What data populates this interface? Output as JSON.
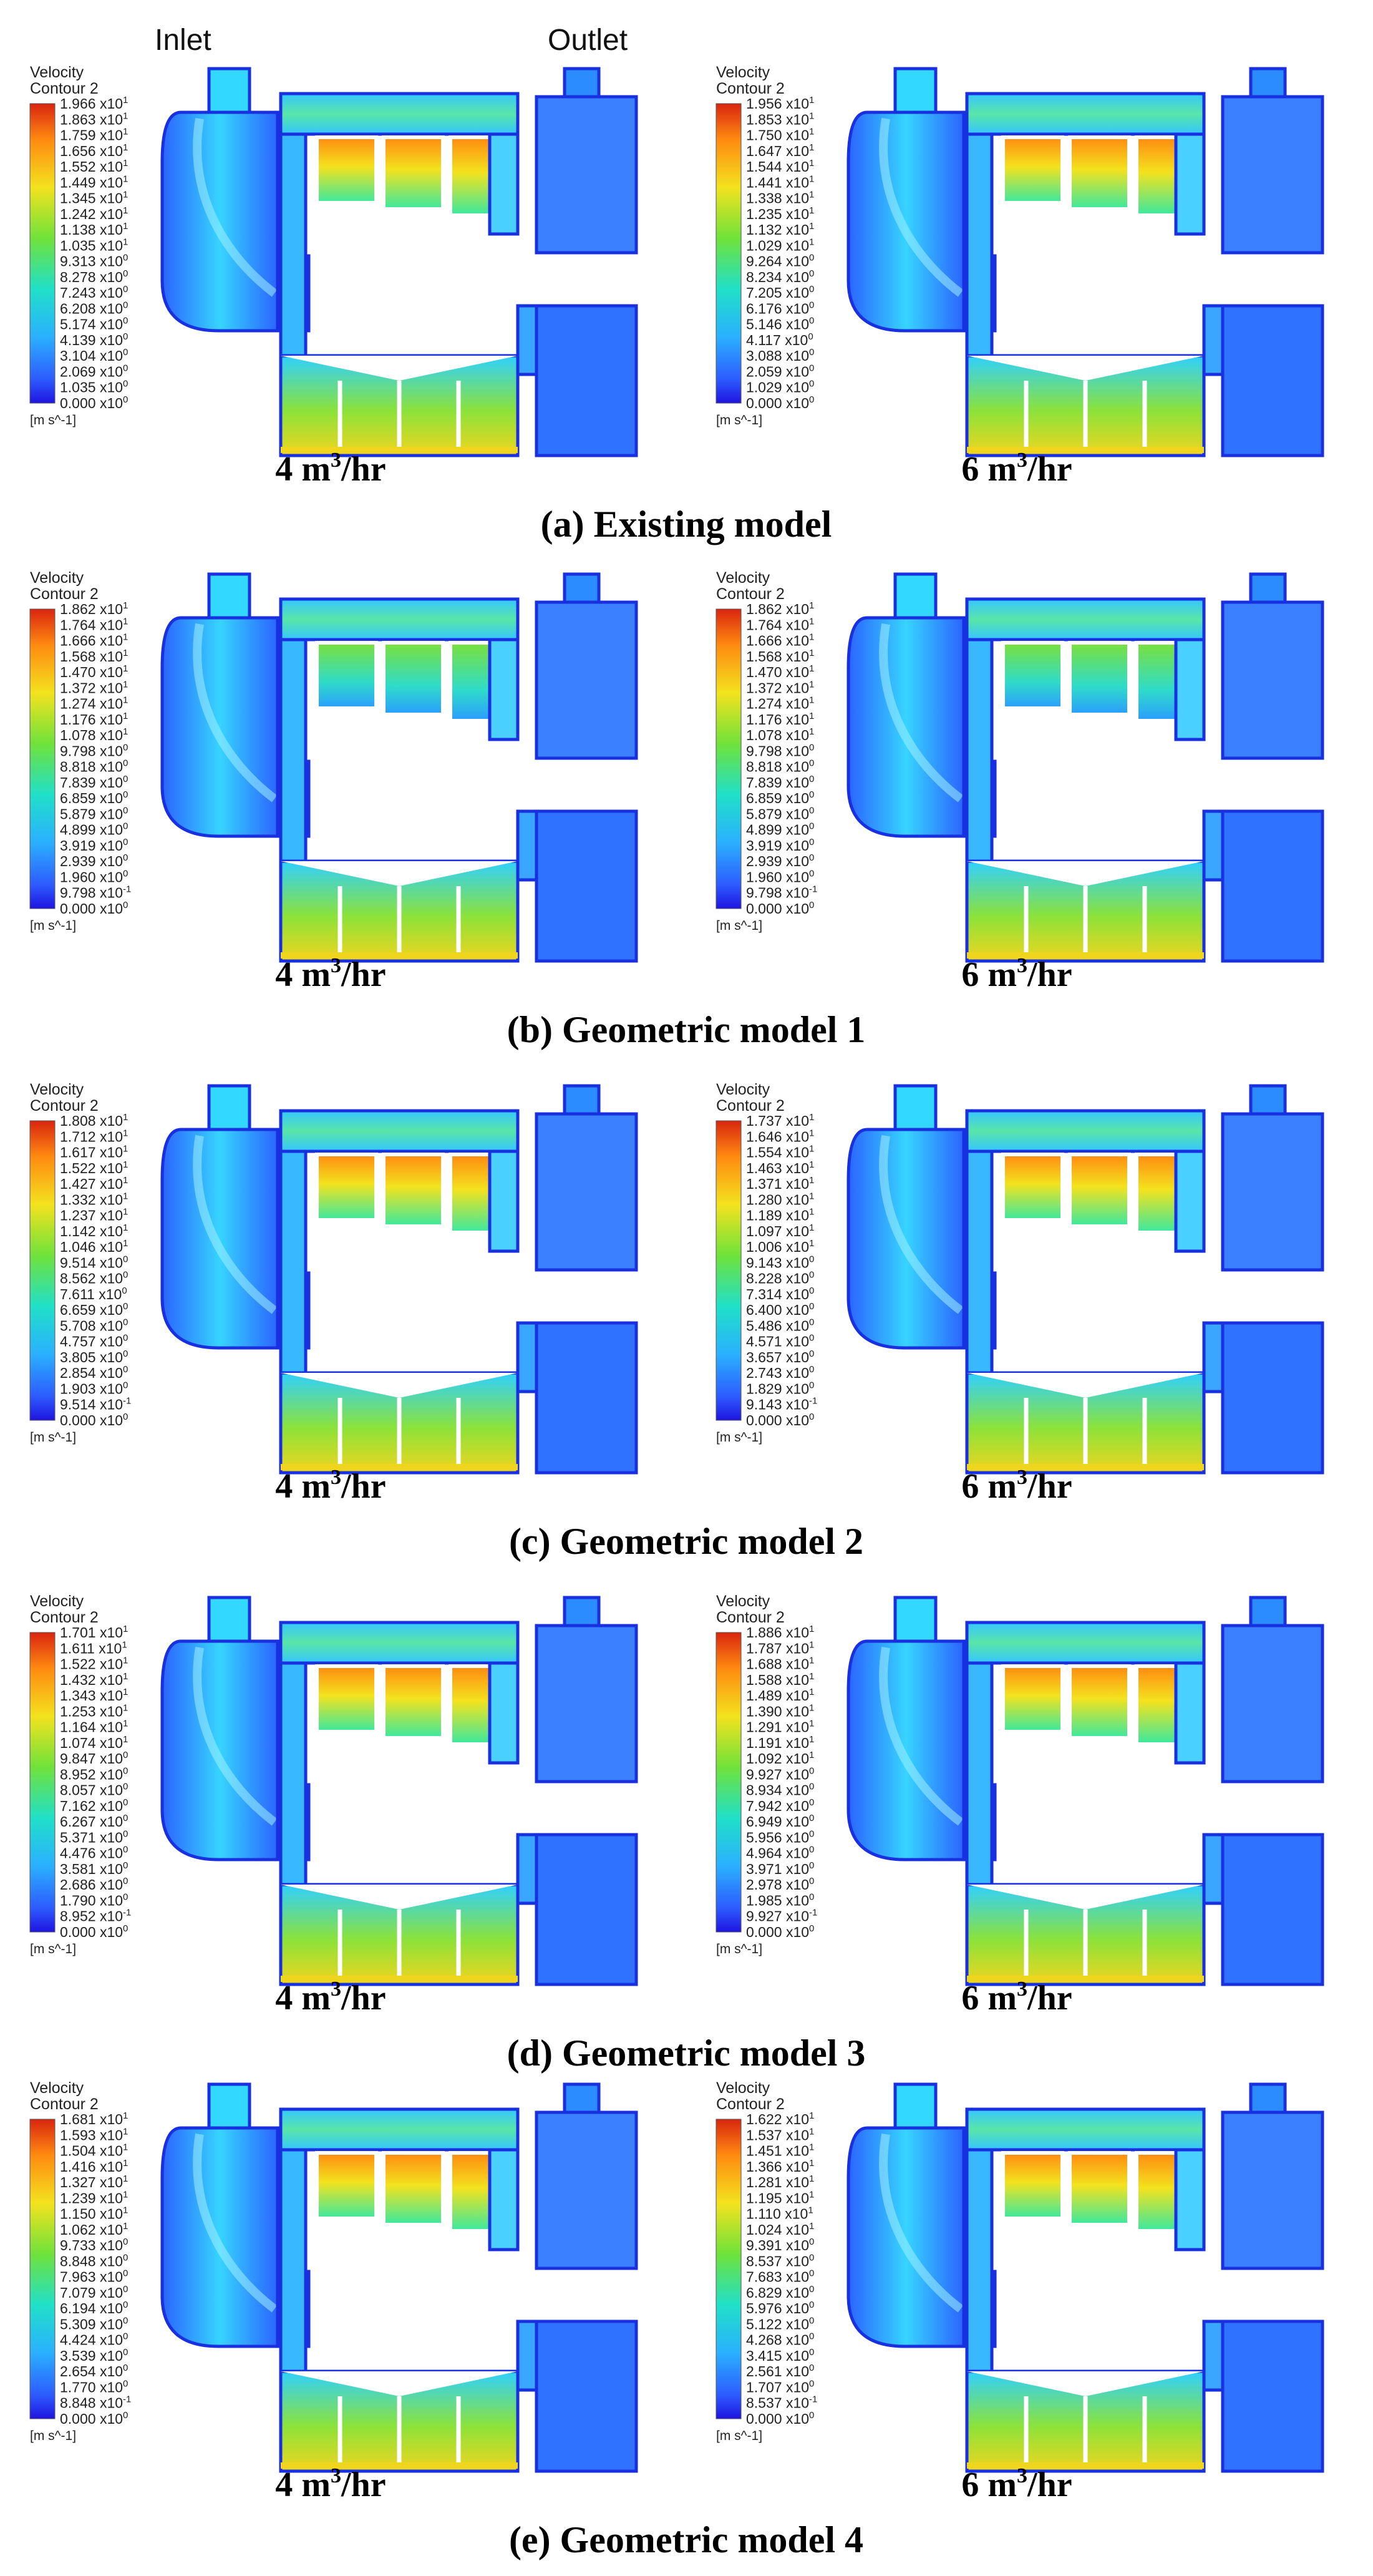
{
  "figure": {
    "io_labels": {
      "inlet": "Inlet",
      "outlet": "Outlet"
    },
    "colors": {
      "outline": "#1830e0",
      "fluid": "#3d8bff",
      "inlet_core": "#32d8ff",
      "high_velocity": "#ff7a10",
      "mid_velocity": "#7ce03a",
      "gap": "#ffffff"
    },
    "rows": [
      {
        "caption": "(a) Existing model",
        "panels": [
          {
            "legend_title": "Velocity",
            "legend_subtitle": "Contour 2",
            "unit": "[m s^-1]",
            "flow_value": "4",
            "flow_unit": "m",
            "flow_sup": "3",
            "flow_tail": "/hr",
            "ticks": [
              [
                "1.966",
                "1"
              ],
              [
                "1.863",
                "1"
              ],
              [
                "1.759",
                "1"
              ],
              [
                "1.656",
                "1"
              ],
              [
                "1.552",
                "1"
              ],
              [
                "1.449",
                "1"
              ],
              [
                "1.345",
                "1"
              ],
              [
                "1.242",
                "1"
              ],
              [
                "1.138",
                "1"
              ],
              [
                "1.035",
                "1"
              ],
              [
                "9.313",
                "0"
              ],
              [
                "8.278",
                "0"
              ],
              [
                "7.243",
                "0"
              ],
              [
                "6.208",
                "0"
              ],
              [
                "5.174",
                "0"
              ],
              [
                "4.139",
                "0"
              ],
              [
                "3.104",
                "0"
              ],
              [
                "2.069",
                "0"
              ],
              [
                "1.035",
                "0"
              ],
              [
                "0.000",
                "0"
              ]
            ],
            "peak": 0.95
          },
          {
            "legend_title": "Velocity",
            "legend_subtitle": "Contour 2",
            "unit": "[m s^-1]",
            "flow_value": "6",
            "flow_unit": "m",
            "flow_sup": "3",
            "flow_tail": "/hr",
            "ticks": [
              [
                "1.956",
                "1"
              ],
              [
                "1.853",
                "1"
              ],
              [
                "1.750",
                "1"
              ],
              [
                "1.647",
                "1"
              ],
              [
                "1.544",
                "1"
              ],
              [
                "1.441",
                "1"
              ],
              [
                "1.338",
                "1"
              ],
              [
                "1.235",
                "1"
              ],
              [
                "1.132",
                "1"
              ],
              [
                "1.029",
                "1"
              ],
              [
                "9.264",
                "0"
              ],
              [
                "8.234",
                "0"
              ],
              [
                "7.205",
                "0"
              ],
              [
                "6.176",
                "0"
              ],
              [
                "5.146",
                "0"
              ],
              [
                "4.117",
                "0"
              ],
              [
                "3.088",
                "0"
              ],
              [
                "2.059",
                "0"
              ],
              [
                "1.029",
                "0"
              ],
              [
                "0.000",
                "0"
              ]
            ],
            "peak": 1.0
          }
        ]
      },
      {
        "caption": "(b) Geometric model 1",
        "panels": [
          {
            "legend_title": "Velocity",
            "legend_subtitle": "Contour 2",
            "unit": "[m s^-1]",
            "flow_value": "4",
            "flow_unit": "m",
            "flow_sup": "3",
            "flow_tail": "/hr",
            "ticks": [
              [
                "1.862",
                "1"
              ],
              [
                "1.764",
                "1"
              ],
              [
                "1.666",
                "1"
              ],
              [
                "1.568",
                "1"
              ],
              [
                "1.470",
                "1"
              ],
              [
                "1.372",
                "1"
              ],
              [
                "1.274",
                "1"
              ],
              [
                "1.176",
                "1"
              ],
              [
                "1.078",
                "1"
              ],
              [
                "9.798",
                "0"
              ],
              [
                "8.818",
                "0"
              ],
              [
                "7.839",
                "0"
              ],
              [
                "6.859",
                "0"
              ],
              [
                "5.879",
                "0"
              ],
              [
                "4.899",
                "0"
              ],
              [
                "3.919",
                "0"
              ],
              [
                "2.939",
                "0"
              ],
              [
                "1.960",
                "0"
              ],
              [
                "9.798",
                "-1"
              ],
              [
                "0.000",
                "0"
              ]
            ],
            "peak": 0.55
          },
          {
            "legend_title": "Velocity",
            "legend_subtitle": "Contour 2",
            "unit": "[m s^-1]",
            "flow_value": "6",
            "flow_unit": "m",
            "flow_sup": "3",
            "flow_tail": "/hr",
            "ticks": [
              [
                "1.862",
                "1"
              ],
              [
                "1.764",
                "1"
              ],
              [
                "1.666",
                "1"
              ],
              [
                "1.568",
                "1"
              ],
              [
                "1.470",
                "1"
              ],
              [
                "1.372",
                "1"
              ],
              [
                "1.274",
                "1"
              ],
              [
                "1.176",
                "1"
              ],
              [
                "1.078",
                "1"
              ],
              [
                "9.798",
                "0"
              ],
              [
                "8.818",
                "0"
              ],
              [
                "7.839",
                "0"
              ],
              [
                "6.859",
                "0"
              ],
              [
                "5.879",
                "0"
              ],
              [
                "4.899",
                "0"
              ],
              [
                "3.919",
                "0"
              ],
              [
                "2.939",
                "0"
              ],
              [
                "1.960",
                "0"
              ],
              [
                "9.798",
                "-1"
              ],
              [
                "0.000",
                "0"
              ]
            ],
            "peak": 0.6
          }
        ]
      },
      {
        "caption": "(c) Geometric model 2",
        "panels": [
          {
            "legend_title": "Velocity",
            "legend_subtitle": "Contour 2",
            "unit": "[m s^-1]",
            "flow_value": "4",
            "flow_unit": "m",
            "flow_sup": "3",
            "flow_tail": "/hr",
            "ticks": [
              [
                "1.808",
                "1"
              ],
              [
                "1.712",
                "1"
              ],
              [
                "1.617",
                "1"
              ],
              [
                "1.522",
                "1"
              ],
              [
                "1.427",
                "1"
              ],
              [
                "1.332",
                "1"
              ],
              [
                "1.237",
                "1"
              ],
              [
                "1.142",
                "1"
              ],
              [
                "1.046",
                "1"
              ],
              [
                "9.514",
                "0"
              ],
              [
                "8.562",
                "0"
              ],
              [
                "7.611",
                "0"
              ],
              [
                "6.659",
                "0"
              ],
              [
                "5.708",
                "0"
              ],
              [
                "4.757",
                "0"
              ],
              [
                "3.805",
                "0"
              ],
              [
                "2.854",
                "0"
              ],
              [
                "1.903",
                "0"
              ],
              [
                "9.514",
                "-1"
              ],
              [
                "0.000",
                "0"
              ]
            ],
            "peak": 0.8
          },
          {
            "legend_title": "Velocity",
            "legend_subtitle": "Contour 2",
            "unit": "[m s^-1]",
            "flow_value": "6",
            "flow_unit": "m",
            "flow_sup": "3",
            "flow_tail": "/hr",
            "ticks": [
              [
                "1.737",
                "1"
              ],
              [
                "1.646",
                "1"
              ],
              [
                "1.554",
                "1"
              ],
              [
                "1.463",
                "1"
              ],
              [
                "1.371",
                "1"
              ],
              [
                "1.280",
                "1"
              ],
              [
                "1.189",
                "1"
              ],
              [
                "1.097",
                "1"
              ],
              [
                "1.006",
                "1"
              ],
              [
                "9.143",
                "0"
              ],
              [
                "8.228",
                "0"
              ],
              [
                "7.314",
                "0"
              ],
              [
                "6.400",
                "0"
              ],
              [
                "5.486",
                "0"
              ],
              [
                "4.571",
                "0"
              ],
              [
                "3.657",
                "0"
              ],
              [
                "2.743",
                "0"
              ],
              [
                "1.829",
                "0"
              ],
              [
                "9.143",
                "-1"
              ],
              [
                "0.000",
                "0"
              ]
            ],
            "peak": 0.85
          }
        ]
      },
      {
        "caption": "(d) Geometric model 3",
        "panels": [
          {
            "legend_title": "Velocity",
            "legend_subtitle": "Contour 2",
            "unit": "[m s^-1]",
            "flow_value": "4",
            "flow_unit": "m",
            "flow_sup": "3",
            "flow_tail": "/hr",
            "ticks": [
              [
                "1.701",
                "1"
              ],
              [
                "1.611",
                "1"
              ],
              [
                "1.522",
                "1"
              ],
              [
                "1.432",
                "1"
              ],
              [
                "1.343",
                "1"
              ],
              [
                "1.253",
                "1"
              ],
              [
                "1.164",
                "1"
              ],
              [
                "1.074",
                "1"
              ],
              [
                "9.847",
                "0"
              ],
              [
                "8.952",
                "0"
              ],
              [
                "8.057",
                "0"
              ],
              [
                "7.162",
                "0"
              ],
              [
                "6.267",
                "0"
              ],
              [
                "5.371",
                "0"
              ],
              [
                "4.476",
                "0"
              ],
              [
                "3.581",
                "0"
              ],
              [
                "2.686",
                "0"
              ],
              [
                "1.790",
                "0"
              ],
              [
                "8.952",
                "-1"
              ],
              [
                "0.000",
                "0"
              ]
            ],
            "peak": 0.95
          },
          {
            "legend_title": "Velocity",
            "legend_subtitle": "Contour 2",
            "unit": "[m s^-1]",
            "flow_value": "6",
            "flow_unit": "m",
            "flow_sup": "3",
            "flow_tail": "/hr",
            "ticks": [
              [
                "1.886",
                "1"
              ],
              [
                "1.787",
                "1"
              ],
              [
                "1.688",
                "1"
              ],
              [
                "1.588",
                "1"
              ],
              [
                "1.489",
                "1"
              ],
              [
                "1.390",
                "1"
              ],
              [
                "1.291",
                "1"
              ],
              [
                "1.191",
                "1"
              ],
              [
                "1.092",
                "1"
              ],
              [
                "9.927",
                "0"
              ],
              [
                "8.934",
                "0"
              ],
              [
                "7.942",
                "0"
              ],
              [
                "6.949",
                "0"
              ],
              [
                "5.956",
                "0"
              ],
              [
                "4.964",
                "0"
              ],
              [
                "3.971",
                "0"
              ],
              [
                "2.978",
                "0"
              ],
              [
                "1.985",
                "0"
              ],
              [
                "9.927",
                "-1"
              ],
              [
                "0.000",
                "0"
              ]
            ],
            "peak": 0.9
          }
        ]
      },
      {
        "caption": "(e) Geometric model 4",
        "panels": [
          {
            "legend_title": "Velocity",
            "legend_subtitle": "Contour 2",
            "unit": "[m s^-1]",
            "flow_value": "4",
            "flow_unit": "m",
            "flow_sup": "3",
            "flow_tail": "/hr",
            "ticks": [
              [
                "1.681",
                "1"
              ],
              [
                "1.593",
                "1"
              ],
              [
                "1.504",
                "1"
              ],
              [
                "1.416",
                "1"
              ],
              [
                "1.327",
                "1"
              ],
              [
                "1.239",
                "1"
              ],
              [
                "1.150",
                "1"
              ],
              [
                "1.062",
                "1"
              ],
              [
                "9.733",
                "0"
              ],
              [
                "8.848",
                "0"
              ],
              [
                "7.963",
                "0"
              ],
              [
                "7.079",
                "0"
              ],
              [
                "6.194",
                "0"
              ],
              [
                "5.309",
                "0"
              ],
              [
                "4.424",
                "0"
              ],
              [
                "3.539",
                "0"
              ],
              [
                "2.654",
                "0"
              ],
              [
                "1.770",
                "0"
              ],
              [
                "8.848",
                "-1"
              ],
              [
                "0.000",
                "0"
              ]
            ],
            "peak": 0.9
          },
          {
            "legend_title": "Velocity",
            "legend_subtitle": "Contour 2",
            "unit": "[m s^-1]",
            "flow_value": "6",
            "flow_unit": "m",
            "flow_sup": "3",
            "flow_tail": "/hr",
            "ticks": [
              [
                "1.622",
                "1"
              ],
              [
                "1.537",
                "1"
              ],
              [
                "1.451",
                "1"
              ],
              [
                "1.366",
                "1"
              ],
              [
                "1.281",
                "1"
              ],
              [
                "1.195",
                "1"
              ],
              [
                "1.110",
                "1"
              ],
              [
                "1.024",
                "1"
              ],
              [
                "9.391",
                "0"
              ],
              [
                "8.537",
                "0"
              ],
              [
                "7.683",
                "0"
              ],
              [
                "6.829",
                "0"
              ],
              [
                "5.976",
                "0"
              ],
              [
                "5.122",
                "0"
              ],
              [
                "4.268",
                "0"
              ],
              [
                "3.415",
                "0"
              ],
              [
                "2.561",
                "0"
              ],
              [
                "1.707",
                "0"
              ],
              [
                "8.537",
                "-1"
              ],
              [
                "0.000",
                "0"
              ]
            ],
            "peak": 0.95
          }
        ]
      }
    ]
  }
}
